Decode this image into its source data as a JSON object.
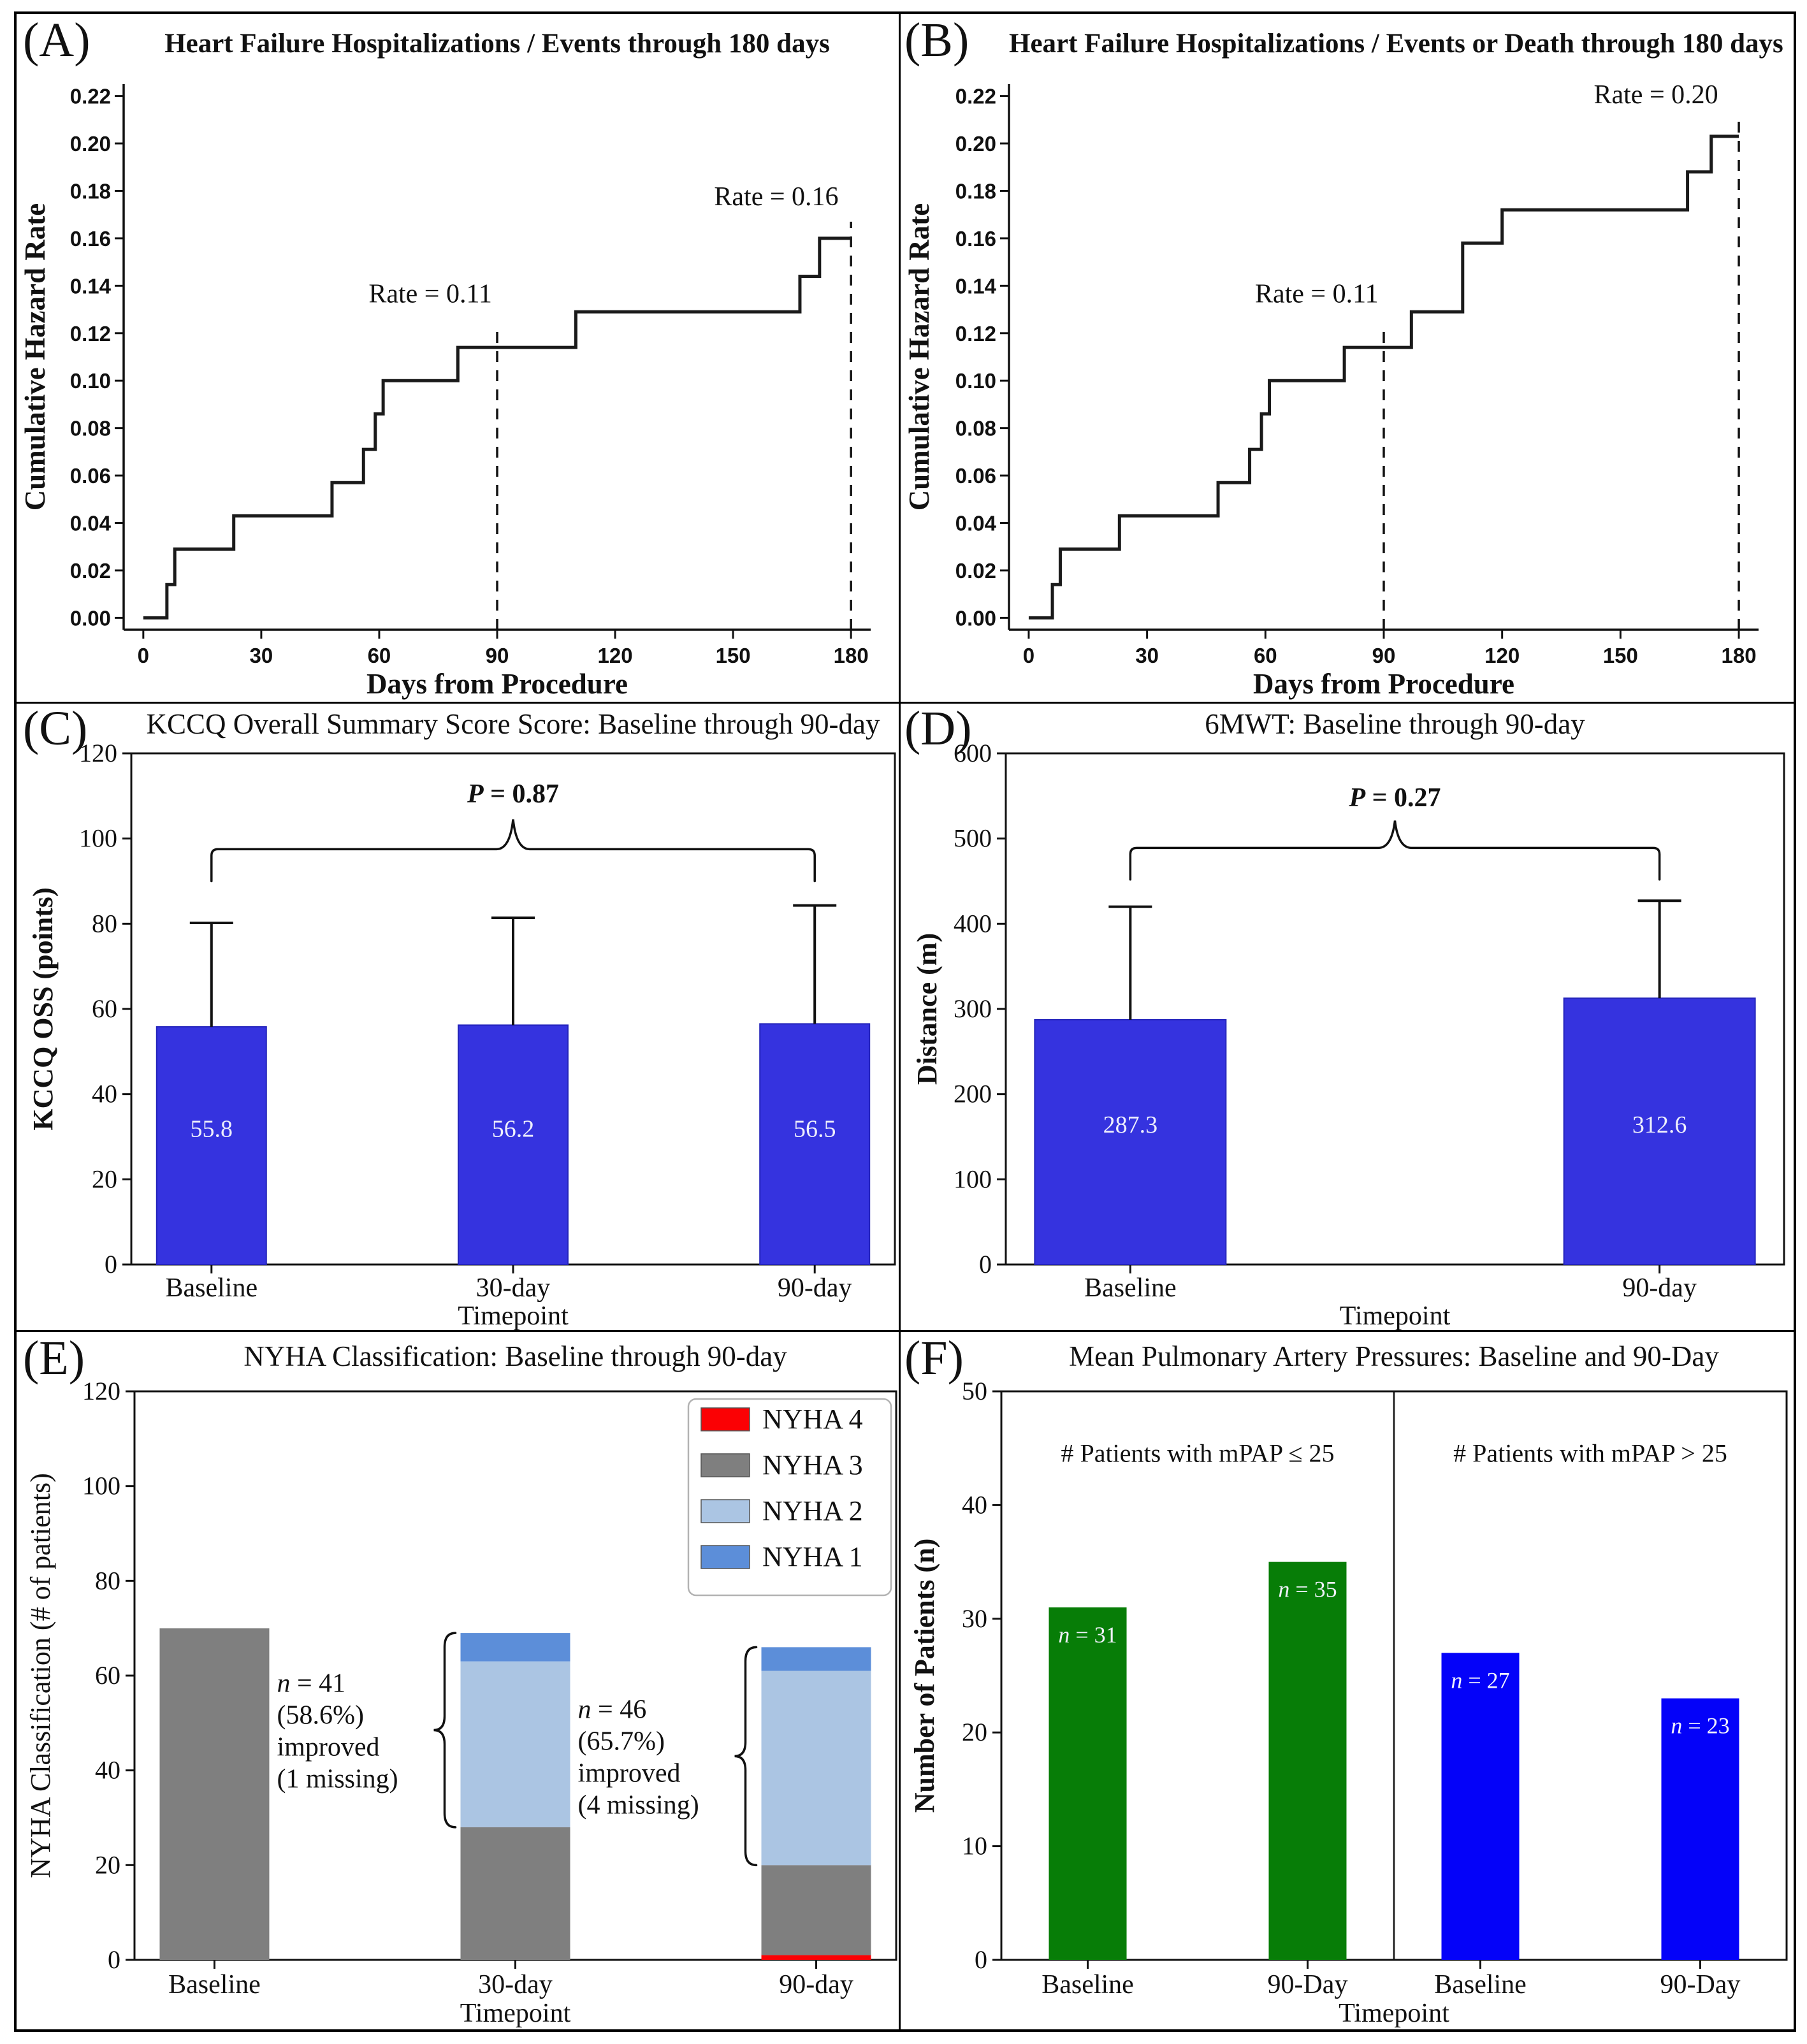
{
  "chart_data": [
    {
      "id": "A",
      "label": "(A)",
      "title": "Heart Failure Hospitalizations / Events through 180 days",
      "type": "step",
      "xlabel": "Days from Procedure",
      "ylabel": "Cumulative Hazard Rate",
      "xlim": [
        -5,
        185
      ],
      "ylim": [
        -0.005,
        0.225
      ],
      "xticks": [
        0,
        30,
        60,
        90,
        120,
        150,
        180
      ],
      "yticks": [
        0.0,
        0.02,
        0.04,
        0.06,
        0.08,
        0.1,
        0.12,
        0.14,
        0.16,
        0.18,
        0.2,
        0.22
      ],
      "line_color": "#1a1a1a",
      "end_x": 180,
      "steps": [
        [
          0,
          0
        ],
        [
          6,
          0.014
        ],
        [
          8,
          0.029
        ],
        [
          23,
          0.043
        ],
        [
          48,
          0.057
        ],
        [
          56,
          0.071
        ],
        [
          59,
          0.086
        ],
        [
          61,
          0.1
        ],
        [
          80,
          0.114
        ],
        [
          110,
          0.129
        ],
        [
          167,
          0.144
        ],
        [
          172,
          0.16
        ]
      ],
      "ref_lines": [
        {
          "x": 90,
          "y_top": 0.121,
          "label": "Rate = 0.11",
          "label_x": 73,
          "label_y": 0.133
        },
        {
          "x": 180,
          "y_top": 0.167,
          "label": "Rate = 0.16",
          "label_x": 161,
          "label_y": 0.174
        }
      ]
    },
    {
      "id": "B",
      "label": "(B)",
      "title": "Heart Failure Hospitalizations / Events or Death through 180 days",
      "type": "step",
      "xlabel": "Days from Procedure",
      "ylabel": "Cumulative Hazard Rate",
      "xlim": [
        -5,
        185
      ],
      "ylim": [
        -0.005,
        0.225
      ],
      "xticks": [
        0,
        30,
        60,
        90,
        120,
        150,
        180
      ],
      "yticks": [
        0.0,
        0.02,
        0.04,
        0.06,
        0.08,
        0.1,
        0.12,
        0.14,
        0.16,
        0.18,
        0.2,
        0.22
      ],
      "line_color": "#1a1a1a",
      "end_x": 180,
      "steps": [
        [
          0,
          0
        ],
        [
          6,
          0.014
        ],
        [
          8,
          0.029
        ],
        [
          23,
          0.043
        ],
        [
          48,
          0.057
        ],
        [
          56,
          0.071
        ],
        [
          59,
          0.086
        ],
        [
          61,
          0.1
        ],
        [
          80,
          0.114
        ],
        [
          97,
          0.129
        ],
        [
          110,
          0.158
        ],
        [
          120,
          0.172
        ],
        [
          167,
          0.188
        ],
        [
          173,
          0.203
        ]
      ],
      "ref_lines": [
        {
          "x": 90,
          "y_top": 0.121,
          "label": "Rate = 0.11",
          "label_x": 73,
          "label_y": 0.133
        },
        {
          "x": 180,
          "y_top": 0.212,
          "label": "Rate = 0.20",
          "label_x": 159,
          "label_y": 0.217
        }
      ]
    },
    {
      "id": "C",
      "label": "(C)",
      "title": "KCCQ Overall Summary Score Score: Baseline through 90-day",
      "type": "bar",
      "xlabel": "Timepoint",
      "ylabel": "KCCQ OSS (points)",
      "ylabel_bold": true,
      "ylim": [
        0,
        120
      ],
      "yticks": [
        0,
        20,
        40,
        60,
        80,
        100,
        120
      ],
      "categories": [
        "Baseline",
        "30-day",
        "90-day"
      ],
      "values": [
        55.8,
        56.2,
        56.5
      ],
      "value_labels": [
        "55.8",
        "56.2",
        "56.5"
      ],
      "error_tops": [
        80.2,
        81.4,
        84.3
      ],
      "value_label_y": 30,
      "bar_color": "#3533df",
      "bar_edge": "#2424bb",
      "value_label_color": "#eeeffc",
      "brace": {
        "text": "P = 0.87",
        "y_hook": 90,
        "y_line": 97.5,
        "y_peak": 104.5,
        "text_y": 108.5
      }
    },
    {
      "id": "D",
      "label": "(D)",
      "title": "6MWT: Baseline through 90-day",
      "type": "bar",
      "xlabel": "Timepoint",
      "ylabel": "Distance (m)",
      "ylabel_bold": true,
      "ylim": [
        0,
        600
      ],
      "yticks": [
        0,
        100,
        200,
        300,
        400,
        500,
        600
      ],
      "categories": [
        "Baseline",
        "90-day"
      ],
      "values": [
        287.3,
        312.6
      ],
      "value_labels": [
        "287.3",
        "312.6"
      ],
      "error_tops": [
        420,
        427
      ],
      "value_label_y": 155,
      "bar_color": "#3533df",
      "bar_edge": "#2424bb",
      "value_label_color": "#eeeffc",
      "brace": {
        "text": "P = 0.27",
        "y_hook": 452,
        "y_line": 489,
        "y_peak": 521,
        "text_y": 538
      }
    },
    {
      "id": "E",
      "label": "(E)",
      "title": "NYHA Classification: Baseline through 90-day",
      "type": "stacked",
      "xlabel": "Timepoint",
      "ylabel": "NYHA Classification (# of patients)",
      "ylabel_bold": false,
      "ylim": [
        0,
        120
      ],
      "yticks": [
        0,
        20,
        40,
        60,
        80,
        100,
        120
      ],
      "categories": [
        "Baseline",
        "30-day",
        "90-day"
      ],
      "series": [
        {
          "name": "NYHA 4",
          "color": "#fb0104",
          "values": [
            0,
            0,
            1
          ]
        },
        {
          "name": "NYHA 3",
          "color": "#7f7f7f",
          "values": [
            70,
            28,
            19
          ]
        },
        {
          "name": "NYHA 2",
          "color": "#abc5e3",
          "values": [
            0,
            35,
            41
          ]
        },
        {
          "name": "NYHA 1",
          "color": "#5c8ed9",
          "values": [
            0,
            6,
            5
          ]
        }
      ],
      "legend_order": [
        "NYHA 4",
        "NYHA 3",
        "NYHA 2",
        "NYHA 1"
      ],
      "braces": [
        {
          "category": 1,
          "y_bottom": 28,
          "y_top": 69,
          "lines": [
            "n = 41",
            "(58.6%)",
            "improved",
            "(1 missing)"
          ]
        },
        {
          "category": 2,
          "y_bottom": 20,
          "y_top": 66,
          "lines": [
            "n = 46",
            "(65.7%)",
            "improved",
            "(4 missing)"
          ]
        }
      ]
    },
    {
      "id": "F",
      "label": "(F)",
      "title": "Mean Pulmonary Artery Pressures: Baseline and 90-Day",
      "type": "grouped",
      "xlabel": "Timepoint",
      "ylabel": "Number of Patients (n)",
      "ylabel_bold": true,
      "ylim": [
        0,
        50
      ],
      "yticks": [
        0,
        10,
        20,
        30,
        40,
        50
      ],
      "categories": [
        "Baseline",
        "90-Day",
        "Baseline",
        "90-Day"
      ],
      "values": [
        31,
        35,
        27,
        23
      ],
      "bar_colors": [
        "#077d07",
        "#077d07",
        "#0402f9",
        "#0402f9"
      ],
      "bar_labels": [
        "n = 31",
        "n = 35",
        "n = 27",
        "n = 23"
      ],
      "bar_label_color": "#f0f1fc",
      "bar_label_dy": 2.3,
      "divider": true,
      "group_titles": [
        {
          "text": "# Patients with mPAP ≤ 25",
          "x_frac": 0.25,
          "y": 43.8
        },
        {
          "text": "# Patients with mPAP > 25",
          "x_frac": 0.75,
          "y": 43.8
        }
      ]
    }
  ]
}
